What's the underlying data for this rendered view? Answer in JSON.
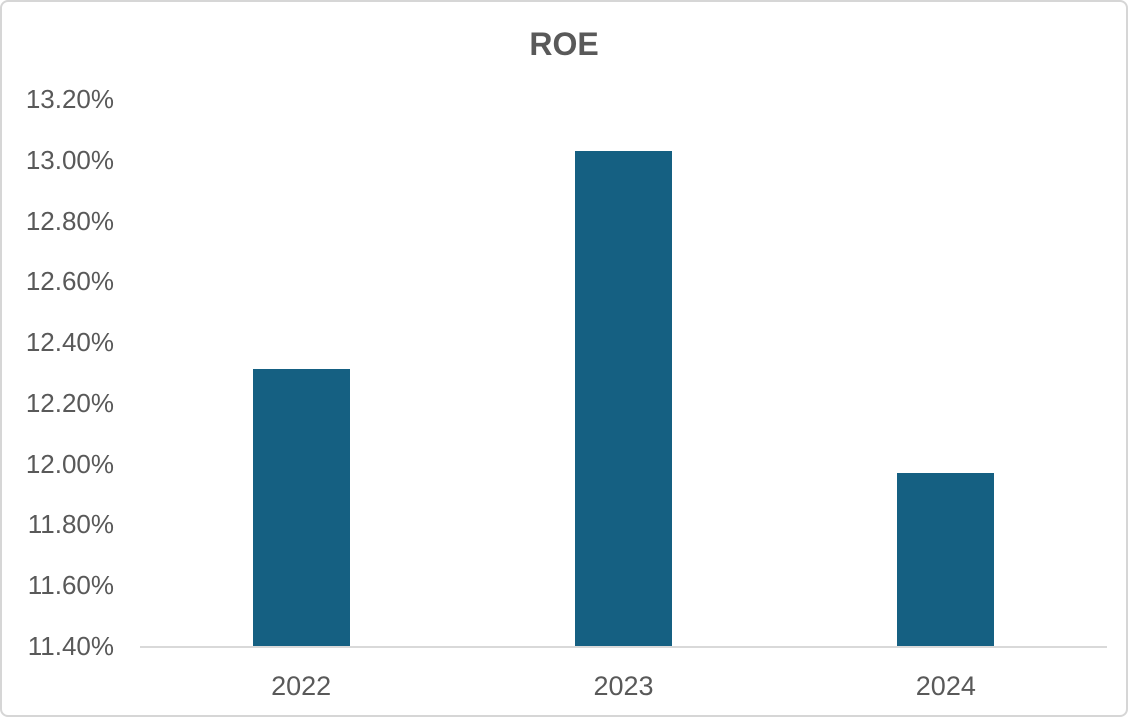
{
  "chart_data": {
    "type": "bar",
    "title": "ROE",
    "categories": [
      "2022",
      "2023",
      "2024"
    ],
    "values": [
      12.31,
      13.03,
      11.97
    ],
    "unit": "%",
    "xlabel": "",
    "ylabel": "",
    "ylim": [
      11.4,
      13.2
    ],
    "ytick_step": 0.2,
    "ytick_labels": [
      "11.40%",
      "11.60%",
      "11.80%",
      "12.00%",
      "12.20%",
      "12.40%",
      "12.60%",
      "12.80%",
      "13.00%",
      "13.20%"
    ],
    "grid": false,
    "legend": "none",
    "colors": {
      "bar": "#156082",
      "text": "#595959",
      "axis": "#d9d9d9",
      "border": "#d6d6d6",
      "background": "#ffffff"
    }
  }
}
